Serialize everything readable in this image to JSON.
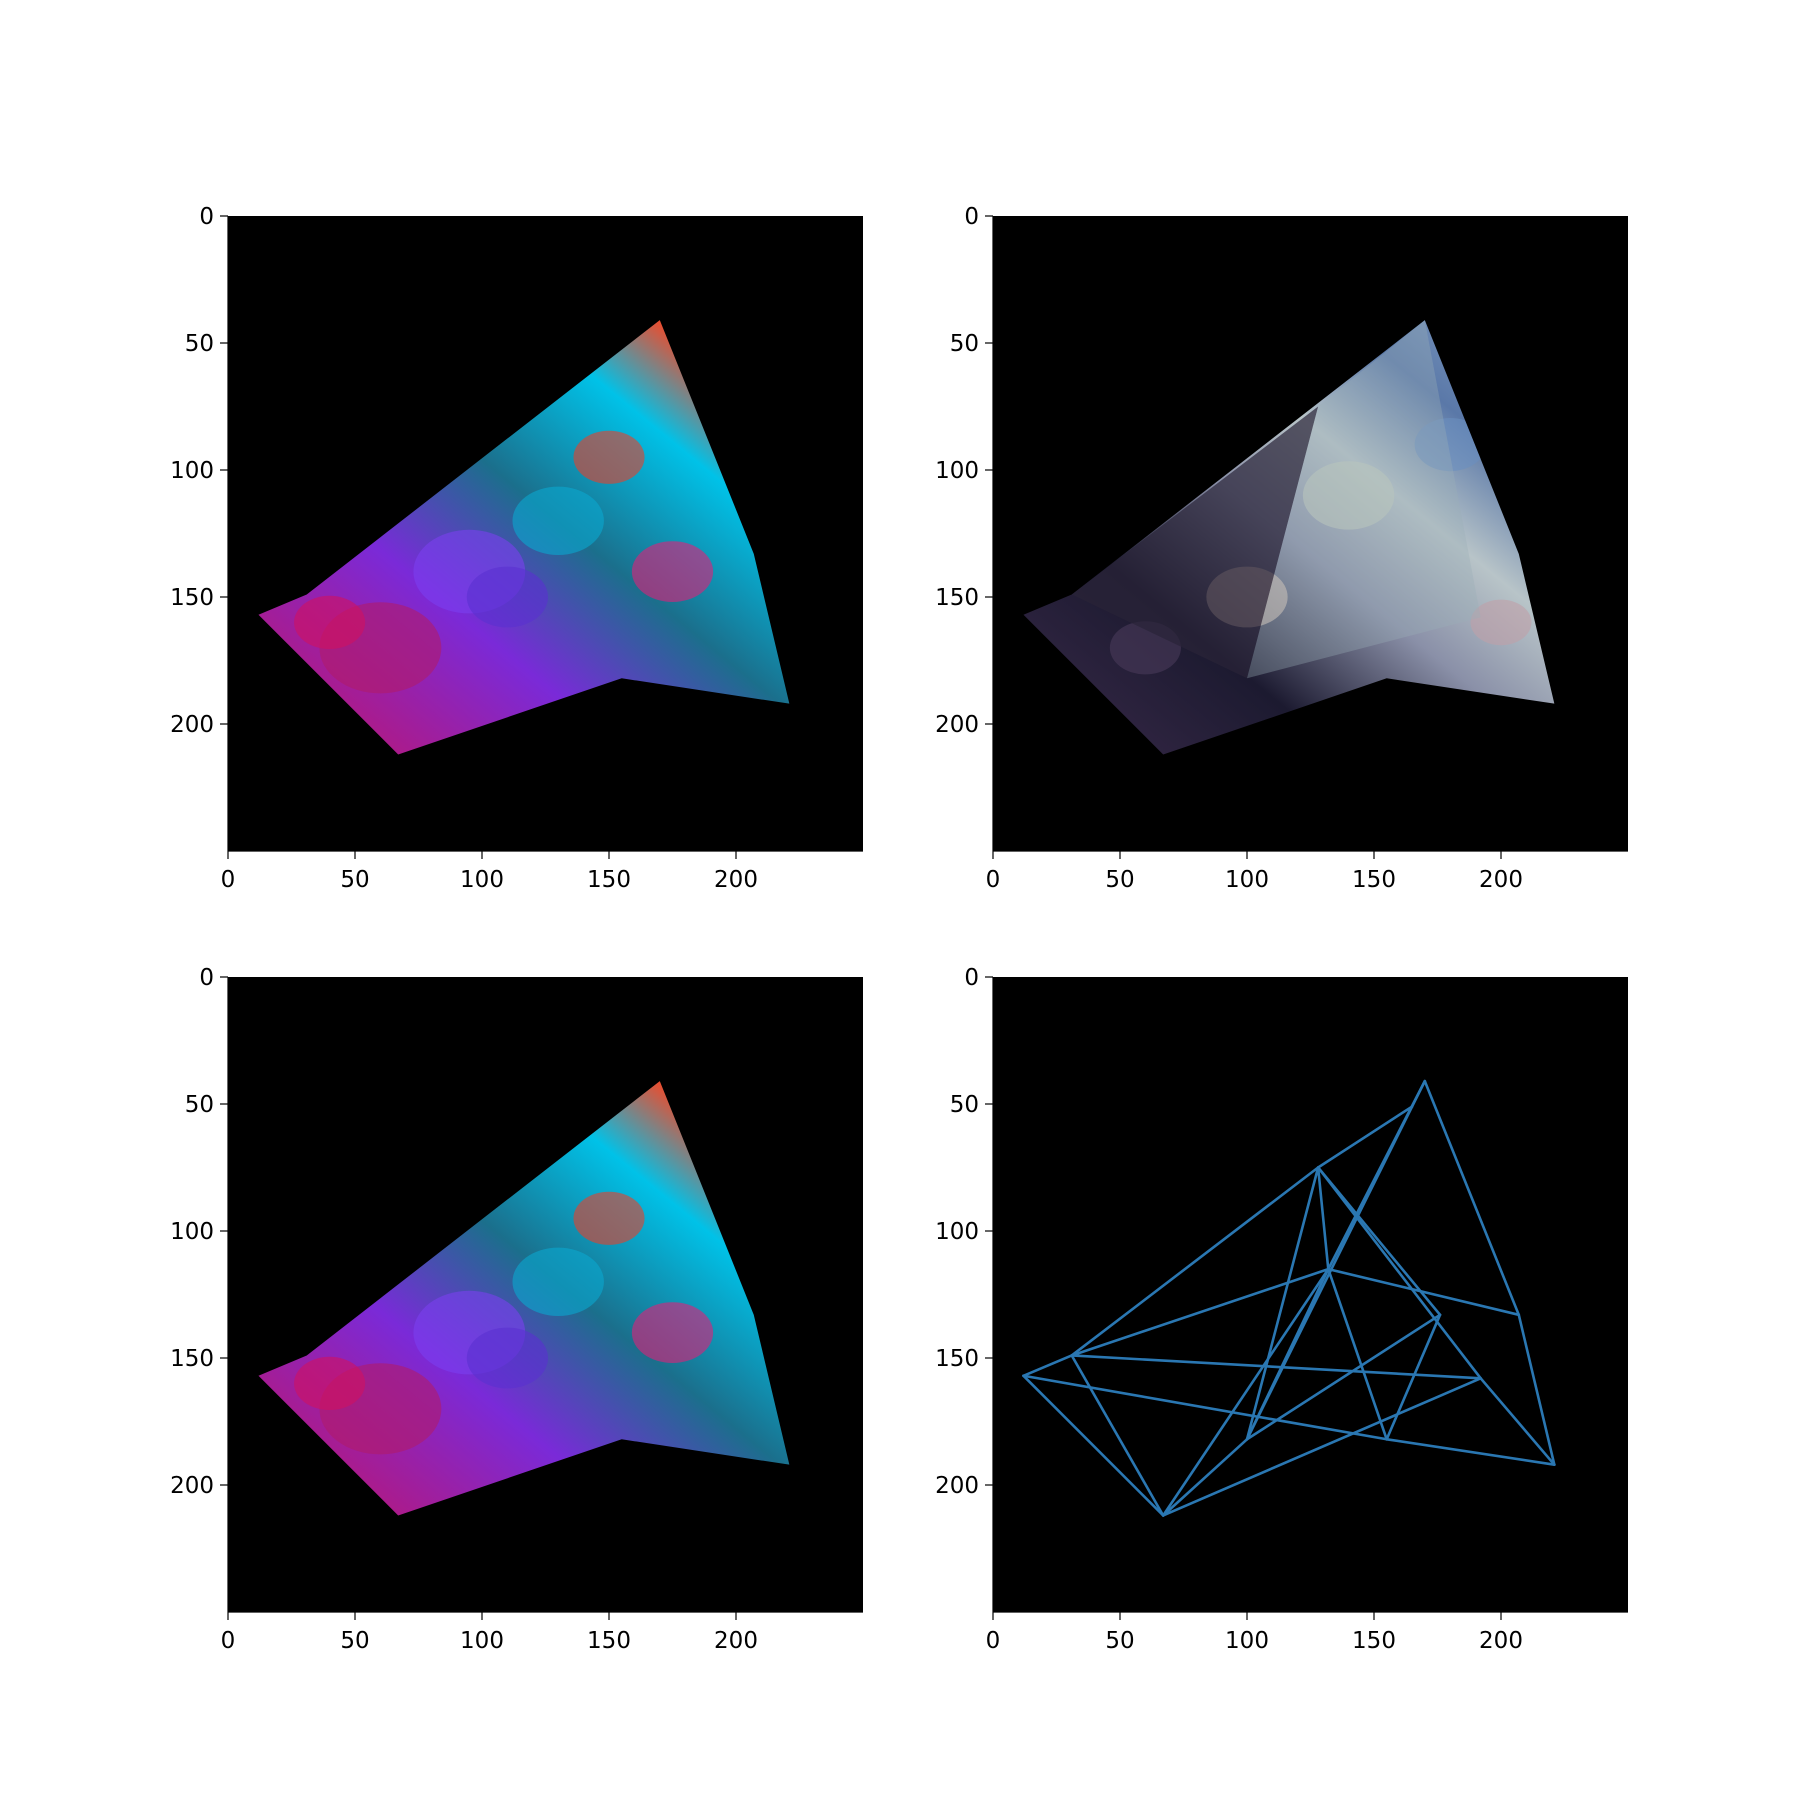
{
  "colors": {
    "background": "#000000",
    "axis": "#000000",
    "line": "#2a77b2",
    "page": "#ffffff"
  },
  "chart_data": [
    {
      "type": "image",
      "panel": "top-left",
      "content": "warped colorful smoke texture",
      "xlim": [
        0,
        250
      ],
      "ylim": [
        250,
        0
      ],
      "xticks": [
        "0",
        "50",
        "100",
        "150",
        "200"
      ],
      "yticks": [
        "0",
        "50",
        "100",
        "150",
        "200"
      ],
      "outline": [
        [
          12,
          157
        ],
        [
          31,
          149
        ],
        [
          170,
          41
        ],
        [
          207,
          133
        ],
        [
          221,
          192
        ],
        [
          155,
          182
        ],
        [
          67,
          212
        ]
      ]
    },
    {
      "type": "image",
      "panel": "top-right",
      "content": "warped space nebula texture",
      "xlim": [
        0,
        250
      ],
      "ylim": [
        250,
        0
      ],
      "xticks": [
        "0",
        "50",
        "100",
        "150",
        "200"
      ],
      "yticks": [
        "0",
        "50",
        "100",
        "150",
        "200"
      ],
      "outline": [
        [
          12,
          157
        ],
        [
          31,
          149
        ],
        [
          170,
          41
        ],
        [
          207,
          133
        ],
        [
          221,
          192
        ],
        [
          155,
          182
        ],
        [
          67,
          212
        ]
      ]
    },
    {
      "type": "image",
      "panel": "bottom-left",
      "content": "warped colorful smoke texture",
      "xlim": [
        0,
        250
      ],
      "ylim": [
        250,
        0
      ],
      "xticks": [
        "0",
        "50",
        "100",
        "150",
        "200"
      ],
      "yticks": [
        "0",
        "50",
        "100",
        "150",
        "200"
      ],
      "outline": [
        [
          12,
          157
        ],
        [
          31,
          149
        ],
        [
          170,
          41
        ],
        [
          207,
          133
        ],
        [
          221,
          192
        ],
        [
          155,
          182
        ],
        [
          67,
          212
        ]
      ]
    },
    {
      "type": "line",
      "panel": "bottom-right",
      "content": "triangulation mesh",
      "xlim": [
        0,
        250
      ],
      "ylim": [
        250,
        0
      ],
      "xticks": [
        "0",
        "50",
        "100",
        "150",
        "200"
      ],
      "yticks": [
        "0",
        "50",
        "100",
        "150",
        "200"
      ],
      "vertices": [
        [
          12,
          157
        ],
        [
          31,
          149
        ],
        [
          67,
          212
        ],
        [
          100,
          182
        ],
        [
          128,
          75
        ],
        [
          132,
          115
        ],
        [
          155,
          182
        ],
        [
          165,
          51
        ],
        [
          170,
          41
        ],
        [
          176,
          133
        ],
        [
          192,
          158
        ],
        [
          207,
          133
        ],
        [
          221,
          192
        ]
      ],
      "edges": [
        [
          0,
          1
        ],
        [
          0,
          2
        ],
        [
          0,
          6
        ],
        [
          1,
          2
        ],
        [
          1,
          4
        ],
        [
          1,
          5
        ],
        [
          1,
          10
        ],
        [
          2,
          3
        ],
        [
          2,
          5
        ],
        [
          2,
          10
        ],
        [
          3,
          4
        ],
        [
          3,
          5
        ],
        [
          3,
          7
        ],
        [
          3,
          9
        ],
        [
          4,
          5
        ],
        [
          4,
          7
        ],
        [
          4,
          9
        ],
        [
          4,
          10
        ],
        [
          5,
          6
        ],
        [
          5,
          8
        ],
        [
          5,
          11
        ],
        [
          6,
          9
        ],
        [
          7,
          8
        ],
        [
          8,
          11
        ],
        [
          11,
          12
        ],
        [
          10,
          12
        ],
        [
          6,
          12
        ]
      ]
    }
  ]
}
